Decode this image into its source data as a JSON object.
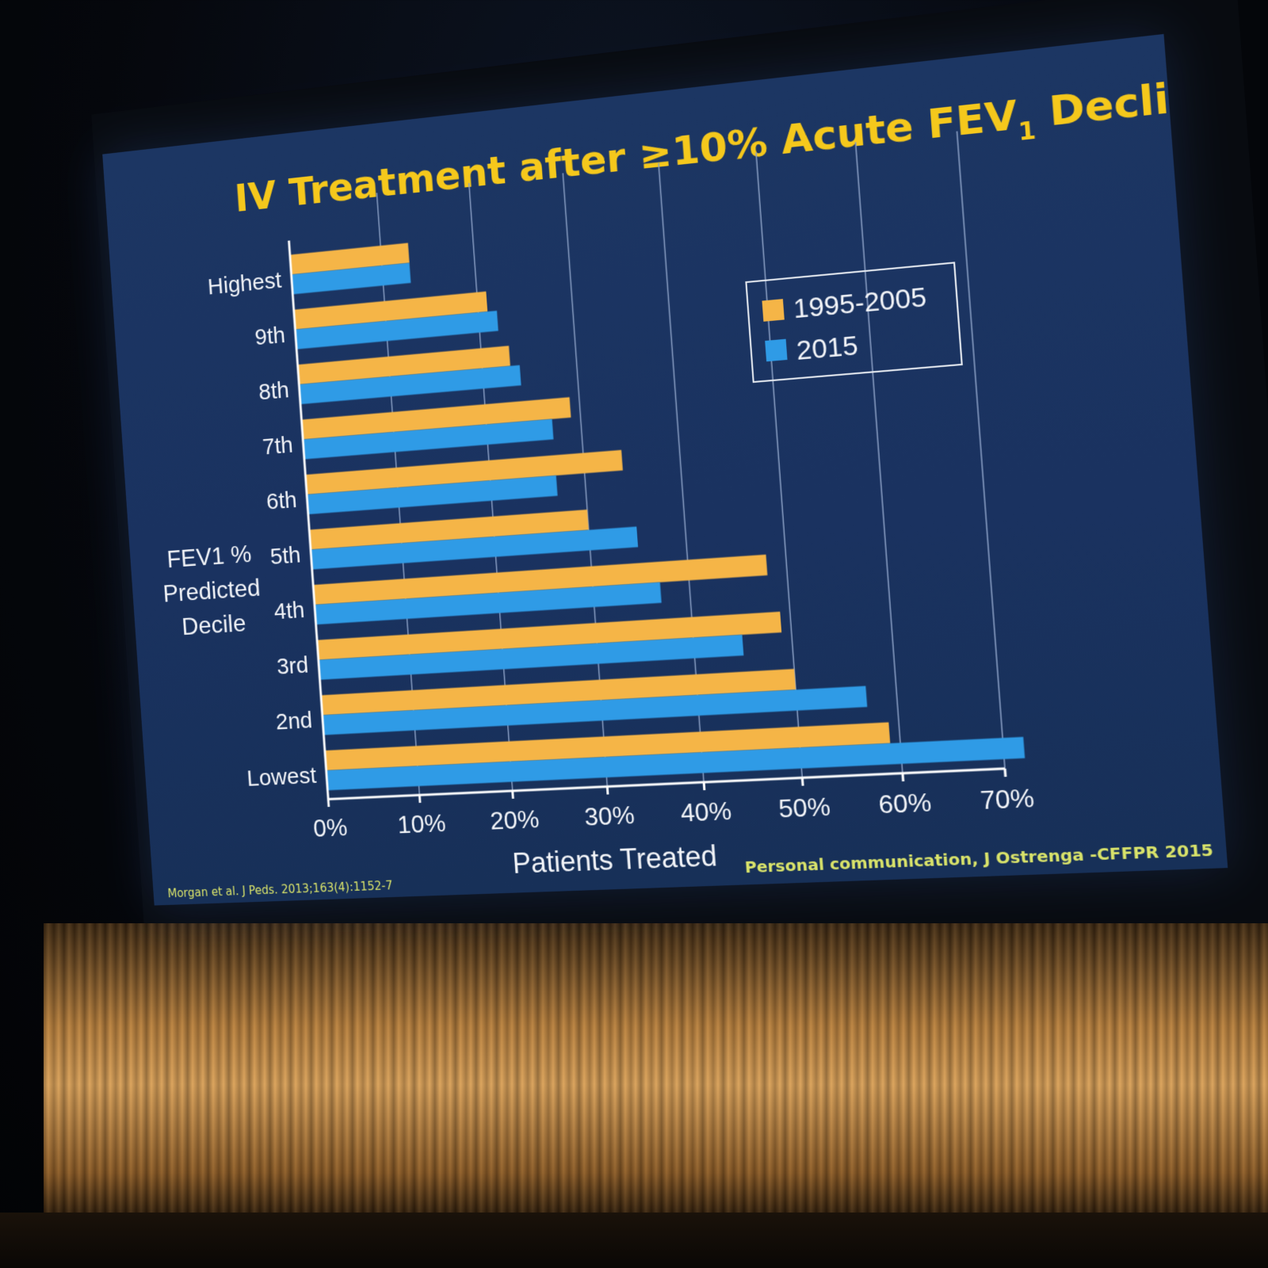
{
  "slide": {
    "title_main": "IV Treatment after ≥10% Acute FEV",
    "title_sub": "1",
    "title_end": " Decline",
    "citation_left": "Morgan et al. J Peds. 2013;163(4):1152-7",
    "citation_right": "Personal communication, J Ostrenga -CFFPR 2015"
  },
  "chart_data": {
    "type": "bar",
    "orientation": "horizontal",
    "ylabel_lines": [
      "FEV1 %",
      "Predicted",
      "Decile"
    ],
    "xlabel": "Patients Treated",
    "categories": [
      "Lowest",
      "2nd",
      "3rd",
      "4th",
      "5th",
      "6th",
      "7th",
      "8th",
      "9th",
      "Highest"
    ],
    "xlim": [
      0,
      70
    ],
    "xticks": [
      "0%",
      "10%",
      "20%",
      "30%",
      "40%",
      "50%",
      "60%",
      "70%"
    ],
    "grid": true,
    "legend_position": "top-right",
    "series": [
      {
        "name": "1995-2005",
        "color": "#f5b547",
        "values": [
          59,
          50,
          49,
          48,
          30,
          34,
          29,
          23,
          21,
          13
        ]
      },
      {
        "name": "2015",
        "color": "#2f9be6",
        "values": [
          72,
          57,
          45,
          37,
          35,
          27,
          27,
          24,
          22,
          13
        ]
      }
    ]
  }
}
